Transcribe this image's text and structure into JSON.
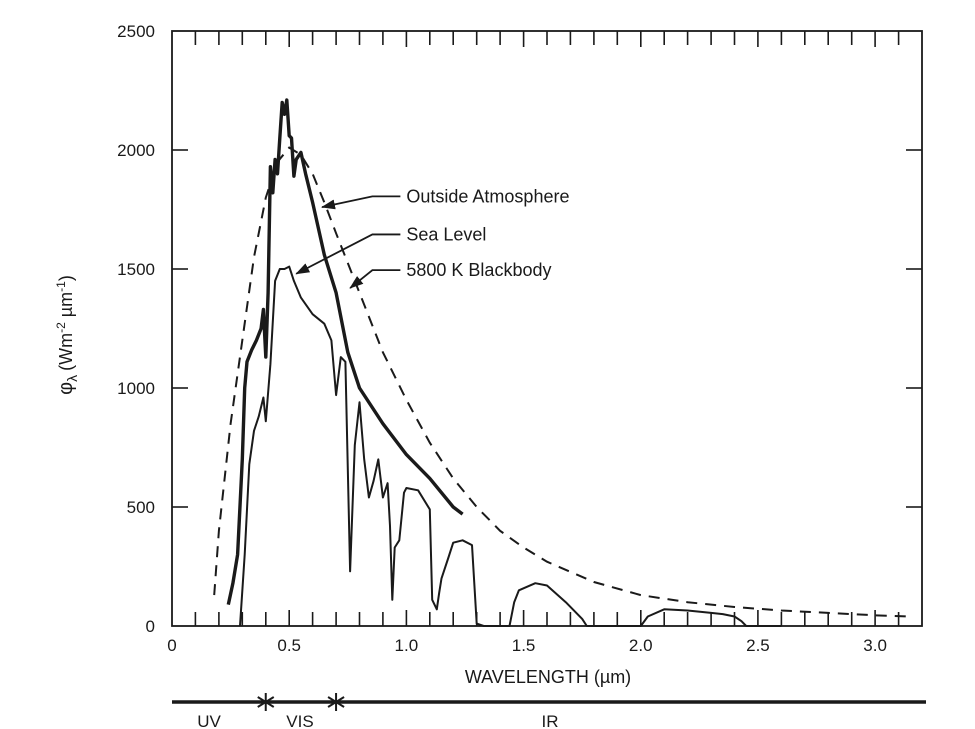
{
  "chart_data": {
    "type": "line",
    "xlabel": "WAVELENGTH (µm)",
    "ylabel": "φλ (Wm⁻² µm⁻¹)",
    "ylabel_parts": {
      "phi": "φ",
      "lambda": "λ",
      "open": "(Wm",
      "exp1": "-2",
      "mid": " µm",
      "exp2": "-1",
      "close": ")"
    },
    "xlim": [
      0,
      3.2
    ],
    "ylim": [
      0,
      2500
    ],
    "x_ticks": [
      {
        "value": 0,
        "label": "0"
      },
      {
        "value": 0.5,
        "label": "0.5"
      },
      {
        "value": 1.0,
        "label": "1.0"
      },
      {
        "value": 1.5,
        "label": "1.5"
      },
      {
        "value": 2.0,
        "label": "2.0"
      },
      {
        "value": 2.5,
        "label": "2.5"
      },
      {
        "value": 3.0,
        "label": "3.0"
      }
    ],
    "y_ticks": [
      {
        "value": 0,
        "label": "0"
      },
      {
        "value": 500,
        "label": "500"
      },
      {
        "value": 1000,
        "label": "1000"
      },
      {
        "value": 1500,
        "label": "1500"
      },
      {
        "value": 2000,
        "label": "2000"
      },
      {
        "value": 2500,
        "label": "2500"
      }
    ],
    "series": [
      {
        "name": "5800 K Blackbody",
        "style": "dashed",
        "x": [
          0.18,
          0.2,
          0.25,
          0.3,
          0.35,
          0.4,
          0.45,
          0.5,
          0.55,
          0.6,
          0.65,
          0.7,
          0.8,
          0.9,
          1.0,
          1.1,
          1.2,
          1.3,
          1.4,
          1.5,
          1.6,
          1.8,
          2.0,
          2.2,
          2.4,
          2.6,
          2.8,
          3.0,
          3.15
        ],
        "y": [
          130,
          400,
          850,
          1200,
          1550,
          1800,
          1950,
          2010,
          1980,
          1900,
          1780,
          1650,
          1400,
          1150,
          950,
          770,
          620,
          500,
          400,
          330,
          270,
          185,
          130,
          100,
          80,
          65,
          55,
          45,
          40
        ]
      },
      {
        "name": "Outside Atmosphere",
        "style": "thick",
        "x": [
          0.24,
          0.26,
          0.28,
          0.3,
          0.31,
          0.32,
          0.34,
          0.36,
          0.38,
          0.39,
          0.4,
          0.41,
          0.42,
          0.43,
          0.44,
          0.45,
          0.46,
          0.47,
          0.48,
          0.49,
          0.5,
          0.51,
          0.52,
          0.53,
          0.55,
          0.57,
          0.6,
          0.65,
          0.7,
          0.75,
          0.8,
          0.9,
          1.0,
          1.1,
          1.2,
          1.24
        ],
        "y": [
          90,
          180,
          300,
          700,
          1000,
          1110,
          1160,
          1200,
          1250,
          1330,
          1130,
          1400,
          1930,
          1820,
          1960,
          1900,
          2050,
          2200,
          2150,
          2210,
          2060,
          2050,
          1890,
          1960,
          1990,
          1900,
          1780,
          1560,
          1400,
          1150,
          1000,
          850,
          720,
          620,
          500,
          470
        ]
      },
      {
        "name": "Sea Level",
        "style": "thin",
        "x": [
          0.29,
          0.31,
          0.33,
          0.35,
          0.37,
          0.39,
          0.4,
          0.42,
          0.44,
          0.46,
          0.48,
          0.5,
          0.52,
          0.55,
          0.6,
          0.65,
          0.68,
          0.7,
          0.72,
          0.74,
          0.76,
          0.78,
          0.8,
          0.82,
          0.84,
          0.86,
          0.88,
          0.9,
          0.92,
          0.93,
          0.94,
          0.95,
          0.97,
          0.99,
          1.0,
          1.05,
          1.1,
          1.11,
          1.12,
          1.13,
          1.14,
          1.15,
          1.18,
          1.2,
          1.24,
          1.28,
          1.3,
          1.33,
          1.35,
          1.44,
          1.46,
          1.48,
          1.55,
          1.6,
          1.68,
          1.75,
          1.77,
          1.8,
          1.95,
          2.0,
          2.03,
          2.1,
          2.2,
          2.3,
          2.35,
          2.4,
          2.43,
          2.45,
          2.5,
          2.6
        ],
        "y": [
          0,
          300,
          680,
          820,
          880,
          960,
          860,
          1100,
          1450,
          1500,
          1500,
          1510,
          1450,
          1380,
          1310,
          1270,
          1200,
          970,
          1130,
          1110,
          230,
          760,
          940,
          700,
          540,
          610,
          700,
          540,
          600,
          420,
          110,
          330,
          360,
          560,
          580,
          570,
          490,
          110,
          90,
          70,
          140,
          200,
          290,
          350,
          360,
          340,
          10,
          0,
          0,
          0,
          100,
          150,
          180,
          170,
          100,
          30,
          0,
          0,
          0,
          0,
          40,
          70,
          65,
          55,
          50,
          40,
          20,
          0,
          0,
          0
        ]
      }
    ],
    "annotations": [
      {
        "text": "Outside Atmosphere",
        "series": "Outside Atmosphere",
        "point_x": 0.64,
        "point_y": 1760,
        "text_x": 1.0,
        "text_y": 1780
      },
      {
        "text": "Sea Level",
        "series": "Sea Level",
        "point_x": 0.53,
        "point_y": 1480,
        "text_x": 1.0,
        "text_y": 1620
      },
      {
        "text": "5800 K Blackbody",
        "series": "5800 K Blackbody",
        "point_x": 0.76,
        "point_y": 1420,
        "text_x": 1.0,
        "text_y": 1470
      }
    ],
    "spectral_bands": [
      {
        "label": "UV",
        "from": 0,
        "to": 0.4
      },
      {
        "label": "VIS",
        "from": 0.4,
        "to": 0.7
      },
      {
        "label": "IR",
        "from": 0.7,
        "to": 3.2
      }
    ],
    "band_markers": [
      0.4,
      0.7
    ],
    "grid": false
  }
}
